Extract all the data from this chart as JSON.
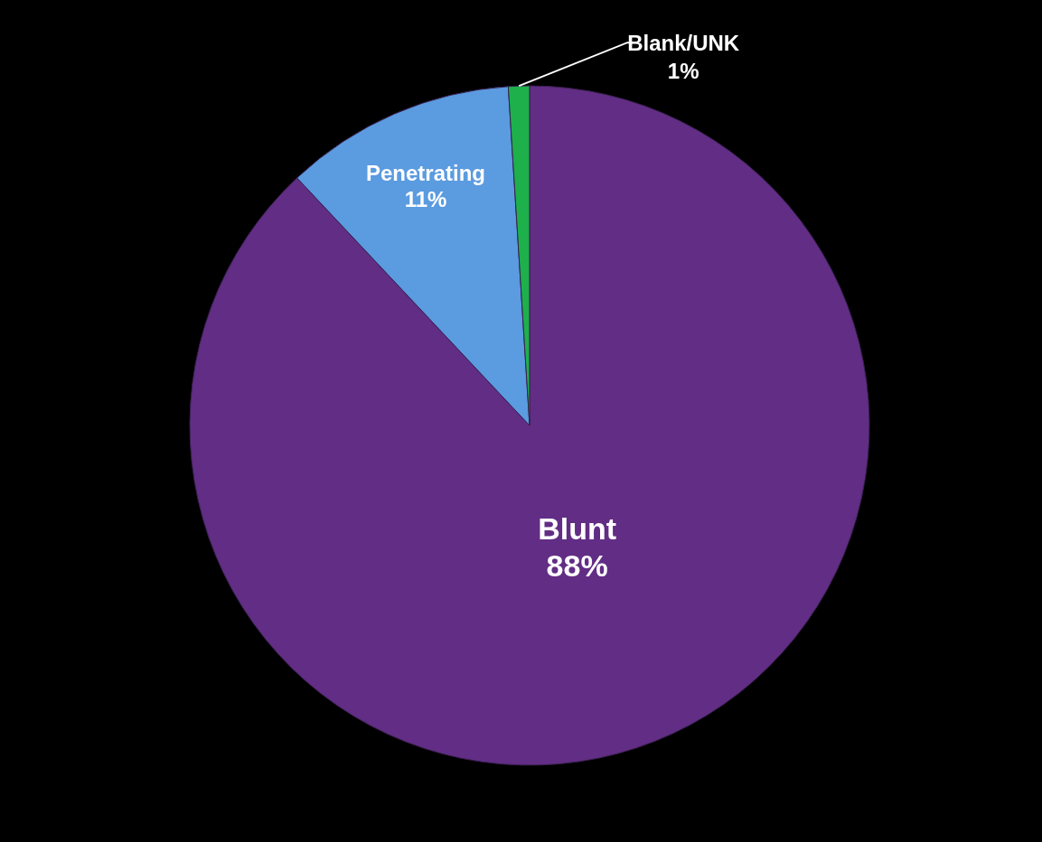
{
  "chart_data": {
    "type": "pie",
    "categories": [
      "Blunt",
      "Penetrating",
      "Blank/UNK"
    ],
    "values": [
      88,
      11,
      1
    ],
    "colors": [
      "#622d85",
      "#5b9be0",
      "#1db04b"
    ],
    "value_labels": [
      "88%",
      "11%",
      "1%"
    ]
  }
}
